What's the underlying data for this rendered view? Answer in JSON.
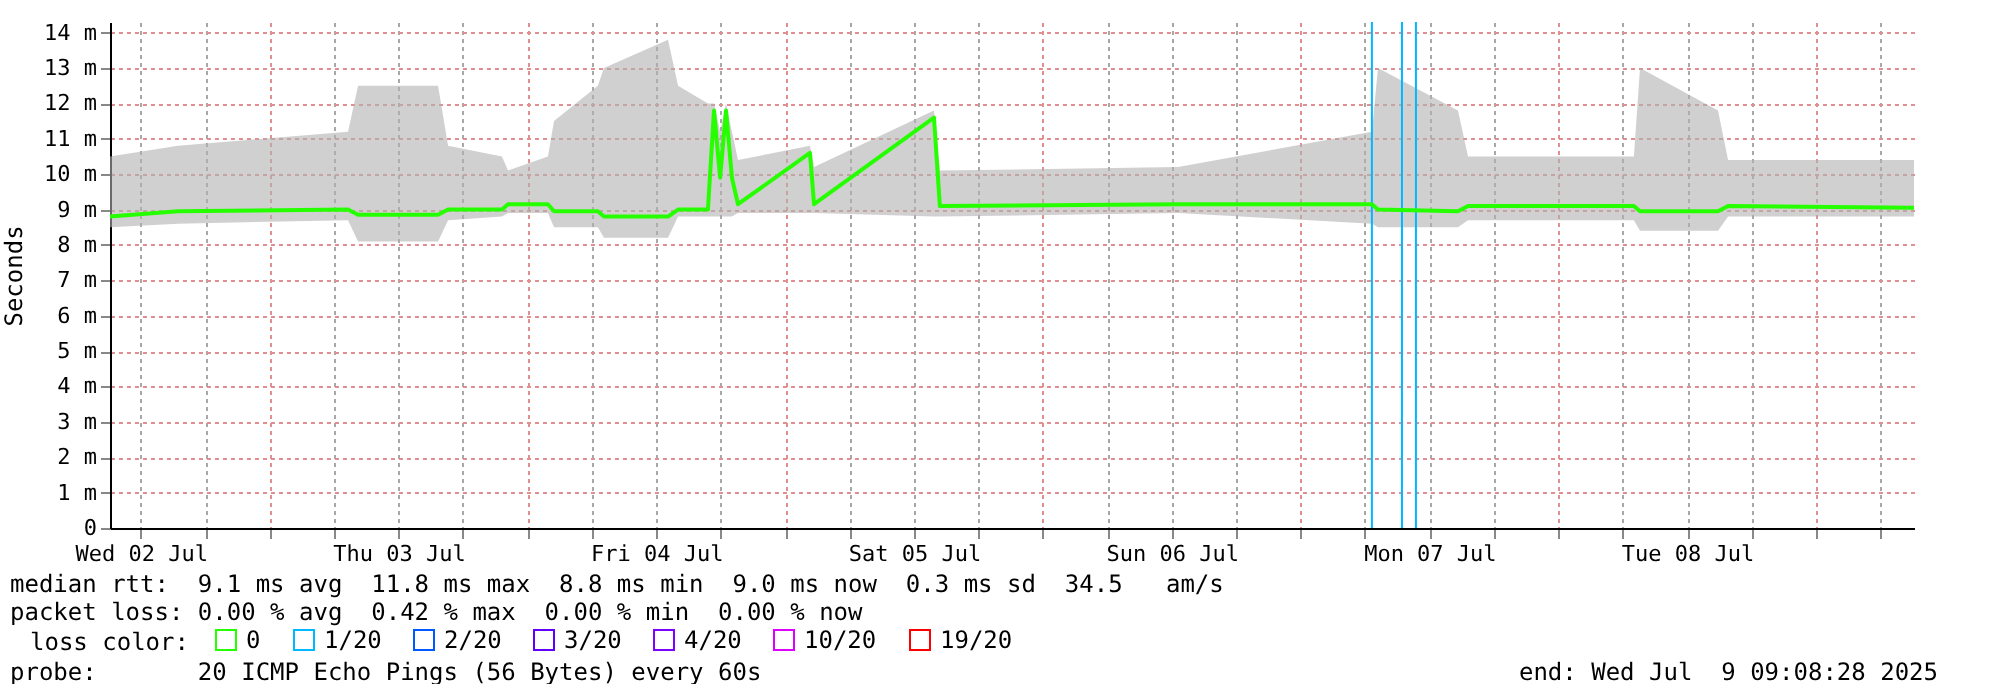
{
  "chart_data": {
    "type": "line",
    "ylabel": "Seconds",
    "legend_title": "loss color:",
    "legend": "bottom",
    "grid": true,
    "marker": "none",
    "line_style": "solid",
    "xlim": [
      "2025-07-02T09:08",
      "2025-07-09T09:08"
    ],
    "xticks": [
      {
        "value": "2025-07-02T12:00",
        "label": "Wed 02 Jul"
      },
      {
        "value": "2025-07-02T18:00",
        "label": null
      },
      {
        "value": "2025-07-03T00:00",
        "label": null
      },
      {
        "value": "2025-07-03T06:00",
        "label": null
      },
      {
        "value": "2025-07-03T12:00",
        "label": "Thu 03 Jul"
      },
      {
        "value": "2025-07-03T18:00",
        "label": null
      },
      {
        "value": "2025-07-04T00:00",
        "label": null
      },
      {
        "value": "2025-07-04T06:00",
        "label": null
      },
      {
        "value": "2025-07-04T12:00",
        "label": "Fri 04 Jul"
      },
      {
        "value": "2025-07-04T18:00",
        "label": null
      },
      {
        "value": "2025-07-05T00:00",
        "label": null
      },
      {
        "value": "2025-07-05T06:00",
        "label": null
      },
      {
        "value": "2025-07-05T12:00",
        "label": "Sat 05 Jul"
      },
      {
        "value": "2025-07-05T18:00",
        "label": null
      },
      {
        "value": "2025-07-06T00:00",
        "label": null
      },
      {
        "value": "2025-07-06T06:00",
        "label": null
      },
      {
        "value": "2025-07-06T12:00",
        "label": "Sun 06 Jul"
      },
      {
        "value": "2025-07-06T18:00",
        "label": null
      },
      {
        "value": "2025-07-07T00:00",
        "label": null
      },
      {
        "value": "2025-07-07T06:00",
        "label": null
      },
      {
        "value": "2025-07-07T12:00",
        "label": "Mon 07 Jul"
      },
      {
        "value": "2025-07-07T18:00",
        "label": null
      },
      {
        "value": "2025-07-08T00:00",
        "label": null
      },
      {
        "value": "2025-07-08T06:00",
        "label": null
      },
      {
        "value": "2025-07-08T12:00",
        "label": "Tue 08 Jul"
      },
      {
        "value": "2025-07-08T18:00",
        "label": null
      },
      {
        "value": "2025-07-09T00:00",
        "label": null
      },
      {
        "value": "2025-07-09T06:00",
        "label": null
      }
    ],
    "ylim": [
      0,
      14.3
    ],
    "yticks": [
      0,
      {
        "value": 1,
        "label": "1 m"
      },
      {
        "value": 2,
        "label": "2 m"
      },
      {
        "value": 3,
        "label": "3 m"
      },
      {
        "value": 4,
        "label": "4 m"
      },
      {
        "value": 5,
        "label": "5 m"
      },
      {
        "value": 6,
        "label": "6 m"
      },
      {
        "value": 7,
        "label": "7 m"
      },
      {
        "value": 8,
        "label": "8 m"
      },
      {
        "value": 9,
        "label": "9 m"
      },
      {
        "value": 10,
        "label": "10 m"
      },
      {
        "value": 11,
        "label": "11 m"
      },
      {
        "value": 12,
        "label": "12 m"
      },
      {
        "value": 13,
        "label": "13 m"
      },
      {
        "value": 14,
        "label": "14 m"
      }
    ],
    "x": [
      "2025-07-02T09:08",
      "2025-07-02T15:28",
      "2025-07-03T07:18",
      "2025-07-03T08:14",
      "2025-07-03T15:41",
      "2025-07-03T16:37",
      "2025-07-03T21:38",
      "2025-07-03T22:12",
      "2025-07-04T01:55",
      "2025-07-04T02:29",
      "2025-07-04T06:34",
      "2025-07-04T07:08",
      "2025-07-04T13:06",
      "2025-07-04T14:02",
      "2025-07-04T16:49",
      "2025-07-04T17:23",
      "2025-07-04T17:57",
      "2025-07-04T18:30",
      "2025-07-04T19:03",
      "2025-07-04T19:37",
      "2025-07-05T02:19",
      "2025-07-05T02:42",
      "2025-07-05T13:52",
      "2025-07-05T14:25",
      "2025-07-06T12:36",
      "2025-07-07T06:39",
      "2025-07-07T07:13",
      "2025-07-07T14:40",
      "2025-07-07T15:36",
      "2025-07-08T07:03",
      "2025-07-08T07:37",
      "2025-07-08T14:53",
      "2025-07-08T15:49",
      "2025-07-09T09:08"
    ],
    "series": [
      {
        "name": "0",
        "color": "#26ff00",
        "values": [
          8.8,
          8.95,
          9.0,
          8.85,
          8.85,
          9.0,
          9.0,
          9.15,
          9.15,
          8.95,
          8.95,
          8.8,
          8.8,
          9.0,
          9.0,
          11.8,
          9.9,
          11.8,
          9.9,
          9.15,
          10.6,
          9.15,
          11.6,
          9.1,
          9.15,
          9.15,
          9.0,
          8.95,
          9.1,
          9.1,
          8.95,
          8.95,
          9.1,
          9.05
        ],
        "lower": [
          8.5,
          8.6,
          8.7,
          8.1,
          8.1,
          8.7,
          8.8,
          8.9,
          8.9,
          8.5,
          8.5,
          8.2,
          8.2,
          8.8,
          8.8,
          8.8,
          8.8,
          8.8,
          8.8,
          8.9,
          8.9,
          8.9,
          8.8,
          8.8,
          8.9,
          8.6,
          8.5,
          8.5,
          8.7,
          8.7,
          8.4,
          8.4,
          8.8,
          8.8
        ],
        "upper": [
          10.5,
          10.8,
          11.2,
          12.5,
          12.5,
          10.8,
          10.5,
          10.1,
          10.5,
          11.5,
          12.5,
          13.0,
          13.8,
          12.5,
          12.0,
          12.0,
          11.2,
          12.0,
          11.2,
          10.4,
          10.8,
          10.2,
          11.8,
          10.1,
          10.2,
          11.2,
          13.0,
          11.8,
          10.5,
          10.5,
          13.0,
          11.8,
          10.4,
          10.4
        ]
      },
      {
        "name": "1/20",
        "color": "#00b8ff",
        "values": [
          null,
          null,
          null,
          null,
          null,
          null,
          null,
          null,
          null,
          null,
          null,
          null,
          null,
          null,
          null,
          null,
          null,
          null,
          null,
          null,
          null,
          null,
          null,
          null,
          null,
          null,
          null,
          null,
          null,
          null,
          null,
          null,
          null,
          null
        ]
      },
      {
        "name": "2/20",
        "color": "#0059ff",
        "values": [
          null,
          null,
          null,
          null,
          null,
          null,
          null,
          null,
          null,
          null,
          null,
          null,
          null,
          null,
          null,
          null,
          null,
          null,
          null,
          null,
          null,
          null,
          null,
          null,
          null,
          null,
          null,
          null,
          null,
          null,
          null,
          null,
          null,
          null
        ]
      },
      {
        "name": "3/20",
        "color": "#5e00ff",
        "values": [
          null,
          null,
          null,
          null,
          null,
          null,
          null,
          null,
          null,
          null,
          null,
          null,
          null,
          null,
          null,
          null,
          null,
          null,
          null,
          null,
          null,
          null,
          null,
          null,
          null,
          null,
          null,
          null,
          null,
          null,
          null,
          null,
          null,
          null
        ]
      },
      {
        "name": "4/20",
        "color": "#7e00ff",
        "values": [
          null,
          null,
          null,
          null,
          null,
          null,
          null,
          null,
          null,
          null,
          null,
          null,
          null,
          null,
          null,
          null,
          null,
          null,
          null,
          null,
          null,
          null,
          null,
          null,
          null,
          null,
          null,
          null,
          null,
          null,
          null,
          null,
          null,
          null
        ]
      },
      {
        "name": "10/20",
        "color": "#dd00ff",
        "values": [
          null,
          null,
          null,
          null,
          null,
          null,
          null,
          null,
          null,
          null,
          null,
          null,
          null,
          null,
          null,
          null,
          null,
          null,
          null,
          null,
          null,
          null,
          null,
          null,
          null,
          null,
          null,
          null,
          null,
          null,
          null,
          null,
          null,
          null
        ]
      },
      {
        "name": "19/20",
        "color": "#ff0000",
        "values": [
          null,
          null,
          null,
          null,
          null,
          null,
          null,
          null,
          null,
          null,
          null,
          null,
          null,
          null,
          null,
          null,
          null,
          null,
          null,
          null,
          null,
          null,
          null,
          null,
          null,
          null,
          null,
          null,
          null,
          null,
          null,
          null,
          null,
          null
        ]
      }
    ],
    "ref_lines": [
      {
        "axis": "x",
        "value": "2025-07-07T06:39",
        "label": null,
        "color": "#00b8ff"
      },
      {
        "axis": "x",
        "value": "2025-07-07T09:27",
        "label": null,
        "color": "#00b8ff"
      },
      {
        "axis": "x",
        "value": "2025-07-07T10:45",
        "label": null,
        "color": "#00b8ff"
      }
    ],
    "annotations": [
      "median rtt:  9.1 ms avg  11.8 ms max  8.8 ms min  9.0 ms now  0.3 ms sd  34.5   am/s",
      "packet loss: 0.00 % avg  0.42 % max  0.00 % min  0.00 % now",
      "probe:       20 ICMP Echo Pings (56 Bytes) every 60s",
      "end: Wed Jul  9 09:08:28 2025"
    ]
  }
}
